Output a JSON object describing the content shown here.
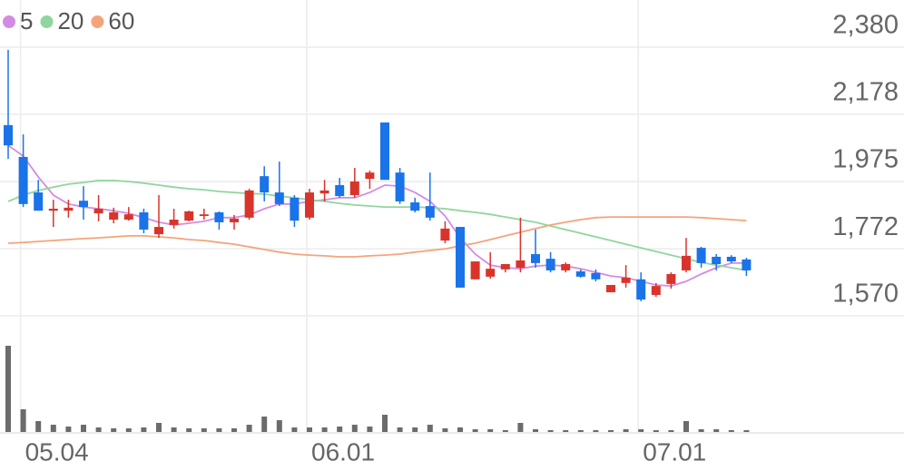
{
  "chart_data": {
    "type": "candlestick",
    "categories": [
      null,
      "05.04",
      null,
      null,
      null,
      null,
      null,
      null,
      null,
      null,
      null,
      null,
      null,
      null,
      null,
      null,
      null,
      null,
      null,
      null,
      "06.01",
      null,
      null,
      null,
      null,
      null,
      null,
      null,
      null,
      null,
      null,
      null,
      null,
      null,
      null,
      null,
      null,
      null,
      null,
      null,
      null,
      null,
      "07.01",
      null,
      null,
      null,
      null,
      null,
      null,
      null
    ],
    "open": [
      2145,
      2049,
      1942,
      1887,
      1887,
      1917,
      1879,
      1860,
      1860,
      1882,
      1816,
      1844,
      1857,
      1871,
      1882,
      1852,
      1866,
      1991,
      1942,
      1926,
      1866,
      1939,
      1964,
      1934,
      1983,
      2153,
      2002,
      1912,
      1901,
      1797,
      1838,
      1680,
      1688,
      1710,
      1715,
      1756,
      1742,
      1707,
      1704,
      1699,
      1641,
      1669,
      1680,
      1633,
      1666,
      1707,
      1775,
      1748,
      1748,
      1740
    ],
    "high": [
      2372,
      2117,
      1980,
      1920,
      1920,
      1961,
      1934,
      1896,
      1898,
      1893,
      1934,
      1893,
      1887,
      1893,
      1885,
      1874,
      1953,
      2021,
      2035,
      1934,
      1953,
      1980,
      1986,
      2016,
      2008,
      2153,
      2016,
      1926,
      2002,
      1855,
      1838,
      1734,
      1762,
      1726,
      1866,
      1830,
      1762,
      1731,
      1710,
      1710,
      1663,
      1723,
      1701,
      1669,
      1701,
      1805,
      1778,
      1756,
      1753,
      1745
    ],
    "low": [
      2043,
      1898,
      1887,
      1838,
      1866,
      1860,
      1855,
      1849,
      1857,
      1819,
      1805,
      1833,
      1855,
      1860,
      1830,
      1830,
      1860,
      1915,
      1901,
      1838,
      1860,
      1915,
      1926,
      1926,
      1953,
      1980,
      1907,
      1882,
      1857,
      1789,
      1655,
      1680,
      1682,
      1701,
      1701,
      1715,
      1701,
      1701,
      1685,
      1674,
      1641,
      1655,
      1614,
      1627,
      1652,
      1701,
      1715,
      1707,
      1729,
      1690
    ],
    "close": [
      2084,
      1907,
      1887,
      1893,
      1896,
      1898,
      1893,
      1882,
      1876,
      1830,
      1838,
      1860,
      1885,
      1876,
      1852,
      1863,
      1948,
      1942,
      1907,
      1857,
      1942,
      1948,
      1931,
      1975,
      2002,
      1980,
      1915,
      1887,
      1866,
      1833,
      1655,
      1734,
      1712,
      1726,
      1737,
      1729,
      1707,
      1726,
      1688,
      1680,
      1663,
      1685,
      1619,
      1660,
      1696,
      1751,
      1729,
      1726,
      1734,
      1707
    ],
    "up_color": "#d9342b",
    "down_color": "#1a73e8",
    "series": [
      {
        "name": "5",
        "color": "#d48be3",
        "values": [
          2084,
          2052,
          1989,
          1934,
          1907,
          1898,
          1893,
          1887,
          1879,
          1866,
          1852,
          1844,
          1849,
          1855,
          1866,
          1866,
          1874,
          1893,
          1907,
          1907,
          1915,
          1920,
          1926,
          1926,
          1942,
          1964,
          1961,
          1942,
          1915,
          1871,
          1805,
          1756,
          1723,
          1715,
          1712,
          1720,
          1723,
          1720,
          1712,
          1701,
          1690,
          1685,
          1674,
          1663,
          1660,
          1674,
          1696,
          1715,
          1729,
          1729
        ]
      },
      {
        "name": "20",
        "color": "#8fd69e",
        "values": [
          1915,
          1934,
          1948,
          1958,
          1967,
          1972,
          1978,
          1978,
          1975,
          1970,
          1964,
          1958,
          1953,
          1950,
          1945,
          1942,
          1939,
          1937,
          1931,
          1926,
          1920,
          1915,
          1909,
          1904,
          1901,
          1898,
          1898,
          1898,
          1896,
          1893,
          1887,
          1882,
          1876,
          1868,
          1860,
          1852,
          1841,
          1830,
          1819,
          1808,
          1797,
          1786,
          1775,
          1764,
          1753,
          1742,
          1731,
          1723,
          1715,
          1707
        ]
      },
      {
        "name": "60",
        "color": "#f4a47c",
        "values": [
          1789,
          1791,
          1794,
          1797,
          1800,
          1803,
          1805,
          1808,
          1811,
          1811,
          1808,
          1805,
          1800,
          1797,
          1791,
          1786,
          1778,
          1770,
          1762,
          1756,
          1753,
          1751,
          1748,
          1748,
          1751,
          1753,
          1756,
          1762,
          1767,
          1772,
          1781,
          1789,
          1800,
          1811,
          1822,
          1833,
          1844,
          1852,
          1860,
          1866,
          1868,
          1868,
          1868,
          1868,
          1868,
          1868,
          1866,
          1863,
          1860,
          1857
        ]
      }
    ],
    "ylim": [
      1570,
      2380
    ],
    "yticks": [
      {
        "value": 1570,
        "label": "1,570"
      },
      {
        "value": 1772,
        "label": "1,772"
      },
      {
        "value": 1975,
        "label": "1,975"
      },
      {
        "value": 2178,
        "label": "2,178"
      },
      {
        "value": 2380,
        "label": "2,380"
      }
    ],
    "grid": true,
    "volume": {
      "color": "#6b6b6b",
      "ylim": [
        0,
        120
      ],
      "values": [
        95,
        25,
        12,
        8,
        6,
        8,
        5,
        4,
        4,
        5,
        10,
        5,
        4,
        4,
        4,
        4,
        8,
        17,
        13,
        5,
        5,
        5,
        6,
        8,
        6,
        19,
        5,
        5,
        8,
        4,
        5,
        3,
        3,
        2,
        10,
        3,
        2,
        2,
        2,
        2,
        2,
        3,
        3,
        2,
        2,
        12,
        3,
        3,
        2,
        2
      ]
    }
  }
}
